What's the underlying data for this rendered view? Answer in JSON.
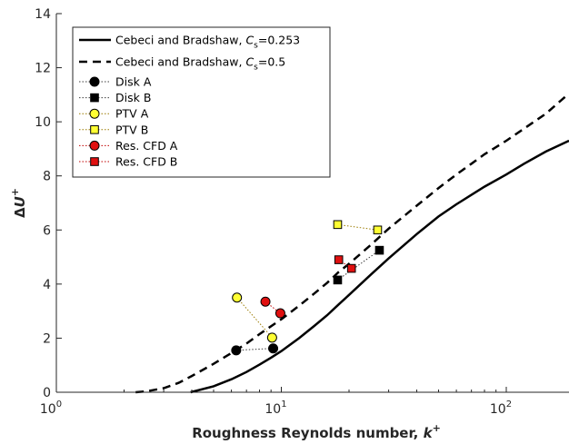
{
  "chart_data": {
    "type": "scatter",
    "xlabel": "Roughness Reynolds number, k+",
    "xlabel_parts": {
      "text": "Roughness Reynolds number, ",
      "var": "k",
      "sup": "+"
    },
    "ylabel": "ΔU+",
    "ylabel_parts": {
      "text": "Δ",
      "var": "U",
      "sup": "+"
    },
    "x_scale": "log",
    "xlim": [
      1,
      190
    ],
    "ylim": [
      0,
      14
    ],
    "x_ticks": [
      {
        "value": 1,
        "base": "10",
        "exp": "0"
      },
      {
        "value": 10,
        "base": "10",
        "exp": "1"
      },
      {
        "value": 100,
        "base": "10",
        "exp": "2"
      }
    ],
    "y_ticks": [
      0,
      2,
      4,
      6,
      8,
      10,
      12,
      14
    ],
    "y_tick_labels": [
      "0",
      "2",
      "4",
      "6",
      "8",
      "10",
      "12",
      "14"
    ],
    "grid": false,
    "legend_position": "top-left",
    "curves": [
      {
        "name": "Cebeci and Bradshaw, Cs=0.253",
        "label_prefix": "Cebeci and Bradshaw, ",
        "label_var": "C",
        "label_sub": "s",
        "label_suffix": "=0.253",
        "style": "solid",
        "color": "#000000",
        "points": [
          [
            3.95,
            0
          ],
          [
            5,
            0.22
          ],
          [
            6,
            0.48
          ],
          [
            7,
            0.75
          ],
          [
            8,
            1.02
          ],
          [
            9,
            1.28
          ],
          [
            10,
            1.52
          ],
          [
            12,
            2.0
          ],
          [
            14,
            2.45
          ],
          [
            16,
            2.85
          ],
          [
            18,
            3.25
          ],
          [
            20,
            3.6
          ],
          [
            25,
            4.35
          ],
          [
            30,
            4.95
          ],
          [
            40,
            5.85
          ],
          [
            50,
            6.5
          ],
          [
            60,
            6.95
          ],
          [
            70,
            7.3
          ],
          [
            80,
            7.6
          ],
          [
            100,
            8.05
          ],
          [
            120,
            8.45
          ],
          [
            150,
            8.9
          ],
          [
            190,
            9.3
          ]
        ]
      },
      {
        "name": "Cebeci and Bradshaw, Cs=0.5",
        "label_prefix": "Cebeci and Bradshaw, ",
        "label_var": "C",
        "label_sub": "s",
        "label_suffix": "=0.5",
        "style": "dashed",
        "color": "#000000",
        "points": [
          [
            2.25,
            0
          ],
          [
            2.5,
            0.03
          ],
          [
            3,
            0.15
          ],
          [
            3.5,
            0.35
          ],
          [
            4,
            0.6
          ],
          [
            5,
            1.05
          ],
          [
            6,
            1.45
          ],
          [
            7,
            1.8
          ],
          [
            8,
            2.15
          ],
          [
            10,
            2.7
          ],
          [
            12,
            3.2
          ],
          [
            14,
            3.65
          ],
          [
            16,
            4.05
          ],
          [
            18,
            4.45
          ],
          [
            20,
            4.75
          ],
          [
            25,
            5.45
          ],
          [
            30,
            6.05
          ],
          [
            40,
            6.9
          ],
          [
            50,
            7.55
          ],
          [
            60,
            8.05
          ],
          [
            70,
            8.45
          ],
          [
            80,
            8.8
          ],
          [
            100,
            9.3
          ],
          [
            120,
            9.75
          ],
          [
            150,
            10.3
          ],
          [
            190,
            11.05
          ]
        ]
      }
    ],
    "series": [
      {
        "name": "Disk A",
        "marker": "circle",
        "fill": "#000000",
        "stroke": "#000000",
        "line_color": "#3c3c3c",
        "points": [
          [
            6.3,
            1.55
          ],
          [
            9.2,
            1.62
          ]
        ]
      },
      {
        "name": "Disk B",
        "marker": "square",
        "fill": "#000000",
        "stroke": "#000000",
        "line_color": "#3c3c3c",
        "points": [
          [
            17.8,
            4.15
          ],
          [
            27.3,
            5.25
          ]
        ]
      },
      {
        "name": "PTV A",
        "marker": "circle",
        "fill": "#ffff33",
        "stroke": "#000000",
        "line_color": "#9a7a00",
        "points": [
          [
            6.35,
            3.5
          ],
          [
            9.1,
            2.02
          ]
        ]
      },
      {
        "name": "PTV B",
        "marker": "square",
        "fill": "#ffff33",
        "stroke": "#000000",
        "line_color": "#9a7a00",
        "points": [
          [
            17.8,
            6.2
          ],
          [
            26.8,
            6.0
          ]
        ]
      },
      {
        "name": "Res. CFD A",
        "marker": "circle",
        "fill": "#e01010",
        "stroke": "#000000",
        "line_color": "#c00000",
        "points": [
          [
            8.5,
            3.35
          ],
          [
            9.9,
            2.92
          ]
        ]
      },
      {
        "name": "Res. CFD B",
        "marker": "square",
        "fill": "#e01010",
        "stroke": "#000000",
        "line_color": "#c00000",
        "points": [
          [
            18.0,
            4.9
          ],
          [
            20.5,
            4.58
          ]
        ]
      }
    ]
  }
}
